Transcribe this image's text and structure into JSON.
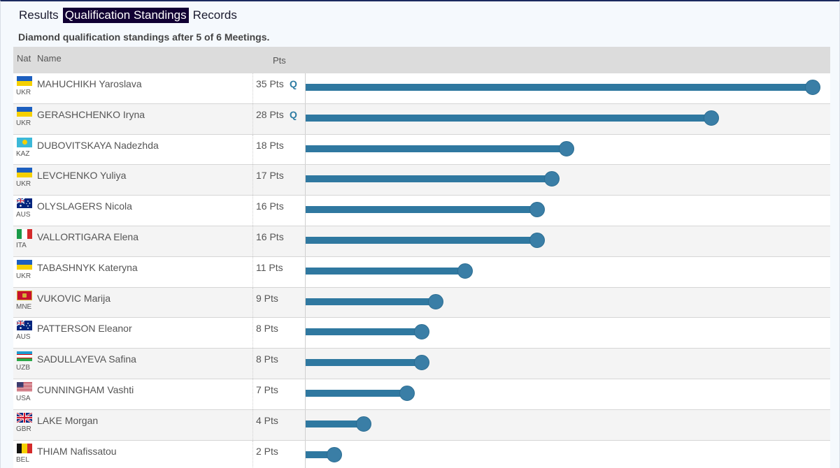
{
  "tabs": [
    {
      "label": "Results",
      "active": false
    },
    {
      "label": "Qualification Standings",
      "active": true
    },
    {
      "label": "Records",
      "active": false
    }
  ],
  "subtitle": "Diamond qualification standings after 5 of 6 Meetings.",
  "columns": {
    "nat": "Nat",
    "name": "Name",
    "pts": "Pts"
  },
  "max_points": 35,
  "rows": [
    {
      "code": "UKR",
      "flag": "ukraine-flag",
      "name": "MAHUCHIKH Yaroslava",
      "points": 35,
      "pts_label": "35 Pts",
      "q": "Q"
    },
    {
      "code": "UKR",
      "flag": "ukraine-flag",
      "name": "GERASHCHENKO Iryna",
      "points": 28,
      "pts_label": "28 Pts",
      "q": "Q"
    },
    {
      "code": "KAZ",
      "flag": "kazakhstan-flag",
      "name": "DUBOVITSKAYA Nadezhda",
      "points": 18,
      "pts_label": "18 Pts",
      "q": ""
    },
    {
      "code": "UKR",
      "flag": "ukraine-flag",
      "name": "LEVCHENKO Yuliya",
      "points": 17,
      "pts_label": "17 Pts",
      "q": ""
    },
    {
      "code": "AUS",
      "flag": "australia-flag",
      "name": "OLYSLAGERS Nicola",
      "points": 16,
      "pts_label": "16 Pts",
      "q": ""
    },
    {
      "code": "ITA",
      "flag": "italy-flag",
      "name": "VALLORTIGARA Elena",
      "points": 16,
      "pts_label": "16 Pts",
      "q": ""
    },
    {
      "code": "UKR",
      "flag": "ukraine-flag",
      "name": "TABASHNYK Kateryna",
      "points": 11,
      "pts_label": "11 Pts",
      "q": ""
    },
    {
      "code": "MNE",
      "flag": "montenegro-flag",
      "name": "VUKOVIC Marija",
      "points": 9,
      "pts_label": "9 Pts",
      "q": ""
    },
    {
      "code": "AUS",
      "flag": "australia-flag",
      "name": "PATTERSON Eleanor",
      "points": 8,
      "pts_label": "8 Pts",
      "q": ""
    },
    {
      "code": "UZB",
      "flag": "uzbekistan-flag",
      "name": "SADULLAYEVA Safina",
      "points": 8,
      "pts_label": "8 Pts",
      "q": ""
    },
    {
      "code": "USA",
      "flag": "usa-flag",
      "name": "CUNNINGHAM Vashti",
      "points": 7,
      "pts_label": "7 Pts",
      "q": ""
    },
    {
      "code": "GBR",
      "flag": "uk-flag",
      "name": "LAKE Morgan",
      "points": 4,
      "pts_label": "4 Pts",
      "q": ""
    },
    {
      "code": "BEL",
      "flag": "belgium-flag",
      "name": "THIAM Nafissatou",
      "points": 2,
      "pts_label": "2 Pts",
      "q": ""
    }
  ],
  "colors": {
    "bar": "#2f78a0",
    "dot": "#3a7ea6",
    "q": "#2d7ca3",
    "active_tab": "#110033"
  }
}
